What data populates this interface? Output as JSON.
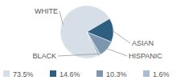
{
  "chart_data": {
    "type": "pie",
    "categories": [
      "WHITE",
      "ASIAN",
      "HISPANIC",
      "BLACK"
    ],
    "values": [
      73.5,
      14.6,
      10.3,
      1.6
    ],
    "value_labels": [
      "73.5%",
      "14.6%",
      "10.3%",
      "1.6%"
    ],
    "colors": [
      "#d6dee7",
      "#2f5f80",
      "#7b96ad",
      "#a9bdcc"
    ],
    "data_labels": true,
    "legend": "bottom"
  }
}
